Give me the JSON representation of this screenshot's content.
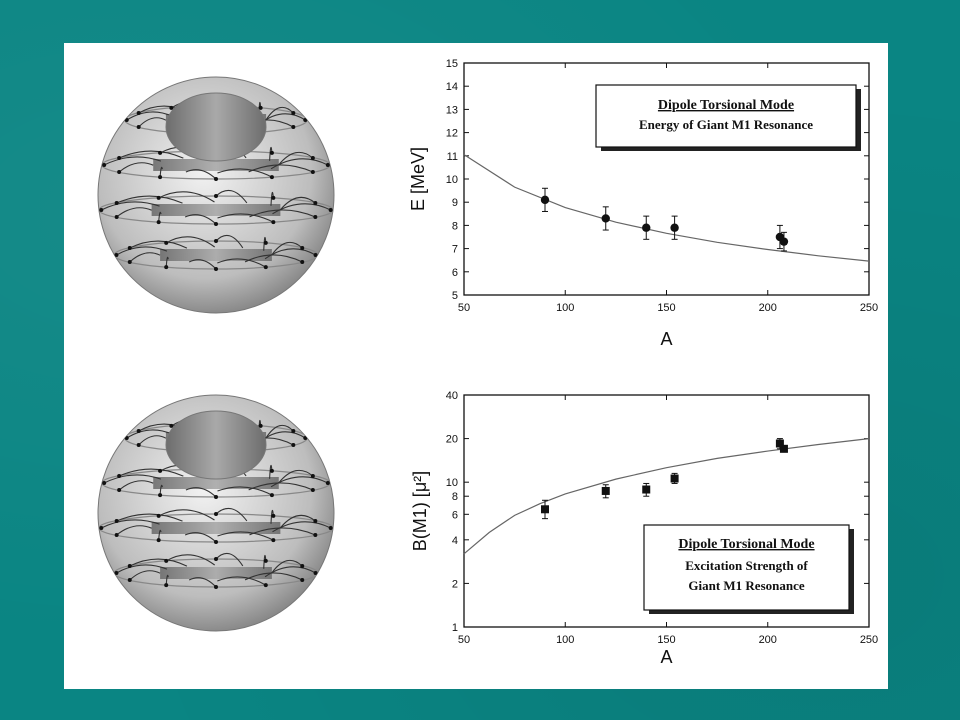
{
  "colors": {
    "background": "#0a8583",
    "panel": "#ffffff"
  },
  "illustrations": [
    {
      "name": "torsional-mode-sphere-top",
      "icon": "sphere-torsion-illustration"
    },
    {
      "name": "torsional-mode-sphere-bottom",
      "icon": "sphere-torsion-illustration"
    }
  ],
  "chart_data": [
    {
      "type": "scatter",
      "title": "Dipole Torsional Mode",
      "subtitle": "Energy of Giant M1 Resonance",
      "xlabel": "A",
      "ylabel": "E [MeV]",
      "xlim": [
        50,
        250
      ],
      "ylim": [
        5,
        15
      ],
      "xticks": [
        "50",
        "100",
        "150",
        "200",
        "250"
      ],
      "yticks": [
        "5",
        "6",
        "7",
        "8",
        "9",
        "10",
        "11",
        "12",
        "13",
        "14",
        "15"
      ],
      "series": [
        {
          "points": [
            {
              "x": 90,
              "y": 9.1,
              "err": 0.5
            },
            {
              "x": 120,
              "y": 8.3,
              "err": 0.5
            },
            {
              "x": 140,
              "y": 7.9,
              "err": 0.5
            },
            {
              "x": 154,
              "y": 7.9,
              "err": 0.5
            },
            {
              "x": 206,
              "y": 7.5,
              "err": 0.5
            },
            {
              "x": 208,
              "y": 7.3,
              "err": 0.4
            }
          ]
        }
      ],
      "fit_curve": [
        [
          50,
          11.05
        ],
        [
          75,
          9.65
        ],
        [
          100,
          8.77
        ],
        [
          125,
          8.14
        ],
        [
          150,
          7.66
        ],
        [
          175,
          7.27
        ],
        [
          200,
          6.96
        ],
        [
          225,
          6.69
        ],
        [
          250,
          6.46
        ]
      ],
      "legend_position": "top-right"
    },
    {
      "type": "scatter",
      "title": "Dipole Torsional Mode",
      "subtitle": "Excitation Strength of",
      "subtitle2": "Giant M1 Resonance",
      "xlabel": "A",
      "ylabel": "B(M1) [μ²]",
      "yscale": "log",
      "xlim": [
        50,
        250
      ],
      "ylim": [
        1,
        40
      ],
      "xticks": [
        "50",
        "100",
        "150",
        "200",
        "250"
      ],
      "yticks": [
        {
          "v": 1,
          "label": "1"
        },
        {
          "v": 2,
          "label": "2"
        },
        {
          "v": 4,
          "label": "4"
        },
        {
          "v": 6,
          "label": "6"
        },
        {
          "v": 8,
          "label": "8"
        },
        {
          "v": 10,
          "label": "10"
        },
        {
          "v": 20,
          "label": "20"
        },
        {
          "v": 40,
          "label": "40"
        }
      ],
      "series": [
        {
          "points": [
            {
              "x": 90,
              "y": 6.5,
              "lo": 5.6,
              "hi": 7.5
            },
            {
              "x": 120,
              "y": 8.7,
              "lo": 7.8,
              "hi": 9.6
            },
            {
              "x": 140,
              "y": 8.9,
              "lo": 8.0,
              "hi": 9.8
            },
            {
              "x": 154,
              "y": 10.6,
              "lo": 9.8,
              "hi": 11.5
            },
            {
              "x": 206,
              "y": 18.5,
              "lo": 17.0,
              "hi": 20.0
            },
            {
              "x": 208,
              "y": 17.0,
              "lo": 16.2,
              "hi": 17.8
            }
          ]
        }
      ],
      "fit_curve": [
        [
          50,
          3.2
        ],
        [
          62.5,
          4.5
        ],
        [
          75,
          5.9
        ],
        [
          87.5,
          7.1
        ],
        [
          100,
          8.3
        ],
        [
          125,
          10.5
        ],
        [
          150,
          12.6
        ],
        [
          175,
          14.6
        ],
        [
          200,
          16.4
        ],
        [
          225,
          18.2
        ],
        [
          250,
          20.0
        ]
      ],
      "legend_position": "bottom-right"
    }
  ]
}
